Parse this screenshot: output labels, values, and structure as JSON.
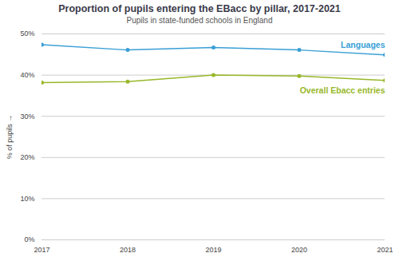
{
  "chart_data": {
    "type": "line",
    "title": "Proportion of pupils entering the EBacc by pillar, 2017-2021",
    "subtitle": "Pupils in state-funded schools in England",
    "y_label": "% of pupils",
    "x": [
      2017,
      2018,
      2019,
      2020,
      2021
    ],
    "series": [
      {
        "name": "Languages",
        "color": "#3a9fd6",
        "values": [
          47.4,
          46.1,
          46.7,
          46.1,
          44.9
        ]
      },
      {
        "name": "Overall Ebacc entries",
        "color": "#98b82a",
        "values": [
          38.2,
          38.4,
          40.0,
          39.8,
          38.7
        ]
      }
    ],
    "xlim": [
      2017,
      2021
    ],
    "xticks": [
      2017,
      2018,
      2019,
      2020,
      2021
    ],
    "ylim": [
      0,
      50
    ],
    "yticks": [
      {
        "value": 0,
        "label": "0%"
      },
      {
        "value": 10,
        "label": "10%"
      },
      {
        "value": 20,
        "label": "20%"
      },
      {
        "value": 30,
        "label": "30%"
      },
      {
        "value": 40,
        "label": "40%"
      },
      {
        "value": 50,
        "label": "50%"
      }
    ],
    "grid": true,
    "marker": "circle"
  }
}
